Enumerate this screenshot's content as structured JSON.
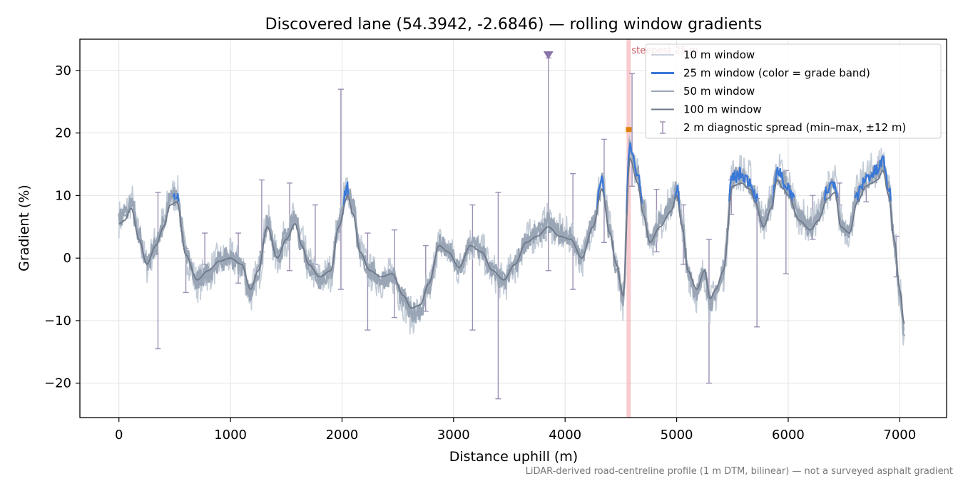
{
  "chart_data": {
    "type": "line",
    "title": "Discovered lane (54.3942, -2.6846) — rolling window gradients",
    "xlabel": "Distance uphill (m)",
    "ylabel": "Gradient (%)",
    "footnote": "LiDAR-derived road-centreline profile (1 m DTM, bilinear) — not a surveyed asphalt gradient",
    "xlim": [
      -350,
      7420
    ],
    "ylim": [
      -25.5,
      35
    ],
    "xticks": [
      0,
      1000,
      2000,
      3000,
      4000,
      5000,
      6000,
      7000
    ],
    "xtick_labels": [
      "0",
      "1000",
      "2000",
      "3000",
      "4000",
      "5000",
      "6000",
      "7000"
    ],
    "yticks": [
      -20,
      -10,
      0,
      10,
      20,
      30
    ],
    "ytick_labels": [
      "−20",
      "−10",
      "0",
      "10",
      "20",
      "30"
    ],
    "grid": true,
    "legend_position": "top-right",
    "colors": {
      "w10": "#b8c3d0",
      "w25": "#3a78d8",
      "w50": "#9aa6b6",
      "w100": "#6e7889",
      "err": "#9c8fb4",
      "marker": "#8a73a6",
      "highlight": "#f2a0a8",
      "peak": "#e0820a"
    },
    "annotations": {
      "steepest_label": "steepest 25 m",
      "steepest_x": 4570,
      "peak_point": [
        4570,
        20.5
      ],
      "outlier_marker": [
        3850,
        32.5
      ]
    },
    "legend": [
      {
        "key": "w10",
        "label": "10 m window"
      },
      {
        "key": "w25",
        "label": "25 m window (color = grade band)"
      },
      {
        "key": "w50",
        "label": "50 m window"
      },
      {
        "key": "w100",
        "label": "100 m window"
      },
      {
        "key": "err",
        "label": "2 m diagnostic spread (min–max, ±12 m)"
      }
    ],
    "series": [
      {
        "name": "100 m window",
        "x": [
          0,
          50,
          110,
          180,
          250,
          330,
          400,
          460,
          520,
          600,
          700,
          800,
          900,
          1000,
          1100,
          1180,
          1250,
          1330,
          1420,
          1500,
          1580,
          1640,
          1700,
          1800,
          1900,
          1970,
          2050,
          2100,
          2160,
          2250,
          2350,
          2450,
          2550,
          2620,
          2700,
          2780,
          2870,
          2950,
          3050,
          3150,
          3250,
          3350,
          3450,
          3550,
          3650,
          3750,
          3850,
          3950,
          4050,
          4150,
          4250,
          4330,
          4400,
          4460,
          4520,
          4580,
          4650,
          4700,
          4760,
          4850,
          4950,
          5000,
          5050,
          5100,
          5180,
          5250,
          5300,
          5350,
          5420,
          5500,
          5580,
          5660,
          5700,
          5780,
          5850,
          5900,
          5960,
          6000,
          6100,
          6200,
          6270,
          6350,
          6420,
          6470,
          6550,
          6620,
          6700,
          6750,
          6800,
          6850,
          6900,
          6950,
          7000,
          7040
        ],
        "y": [
          5.5,
          6,
          8,
          3,
          -1,
          2,
          5,
          8.5,
          9,
          0.5,
          -3.5,
          -2,
          -0.5,
          0,
          -1,
          -5,
          -2,
          5,
          0,
          3,
          5.5,
          2,
          -1,
          -3,
          -2,
          5,
          10,
          7,
          1,
          -2,
          -3,
          -2.5,
          -6,
          -8,
          -7.5,
          -4,
          2,
          1,
          -1.5,
          2,
          1,
          -2,
          -3.5,
          -1,
          2.5,
          3.5,
          5,
          3.5,
          3,
          0,
          5,
          11,
          4,
          -1,
          -6,
          16,
          12,
          7,
          2.5,
          5,
          7.5,
          10,
          5,
          -2,
          -5,
          -2,
          -6.5,
          -5,
          -2,
          11.5,
          12,
          11,
          9,
          5,
          8,
          12.5,
          11,
          10,
          6,
          4.5,
          6,
          9.5,
          10.5,
          5,
          4,
          9,
          11.5,
          12,
          12.5,
          14,
          10,
          3,
          -5,
          -10.5
        ]
      }
    ],
    "error_bars": [
      {
        "x": 350,
        "low": -14.5,
        "high": 10.5
      },
      {
        "x": 600,
        "low": -5.5,
        "high": 1.5
      },
      {
        "x": 770,
        "low": -1,
        "high": 4
      },
      {
        "x": 1070,
        "low": -4,
        "high": 4
      },
      {
        "x": 1280,
        "low": 1,
        "high": 12.5
      },
      {
        "x": 1530,
        "low": -2,
        "high": 12
      },
      {
        "x": 1760,
        "low": -1,
        "high": 8.5
      },
      {
        "x": 1990,
        "low": -5,
        "high": 27
      },
      {
        "x": 2230,
        "low": -11.5,
        "high": 4
      },
      {
        "x": 2470,
        "low": -9.5,
        "high": 4.5
      },
      {
        "x": 2750,
        "low": -8.5,
        "high": 2
      },
      {
        "x": 3170,
        "low": -11.5,
        "high": 8.5
      },
      {
        "x": 3400,
        "low": -22.5,
        "high": 10.5
      },
      {
        "x": 3850,
        "low": -2,
        "high": 32
      },
      {
        "x": 4070,
        "low": -5,
        "high": 13.5
      },
      {
        "x": 4350,
        "low": 2.5,
        "high": 19
      },
      {
        "x": 4600,
        "low": 11.5,
        "high": 29.5
      },
      {
        "x": 4820,
        "low": 1,
        "high": 11
      },
      {
        "x": 5060,
        "low": -1,
        "high": 8.5
      },
      {
        "x": 5290,
        "low": -20,
        "high": 3
      },
      {
        "x": 5490,
        "low": 7,
        "high": 12.5
      },
      {
        "x": 5720,
        "low": -11,
        "high": 9.5
      },
      {
        "x": 5980,
        "low": -2.5,
        "high": 14
      },
      {
        "x": 6220,
        "low": 3,
        "high": 10
      },
      {
        "x": 6460,
        "low": 8.5,
        "high": 12
      },
      {
        "x": 6700,
        "low": 9,
        "high": 13
      },
      {
        "x": 6970,
        "low": -3,
        "high": 3.5
      }
    ]
  }
}
